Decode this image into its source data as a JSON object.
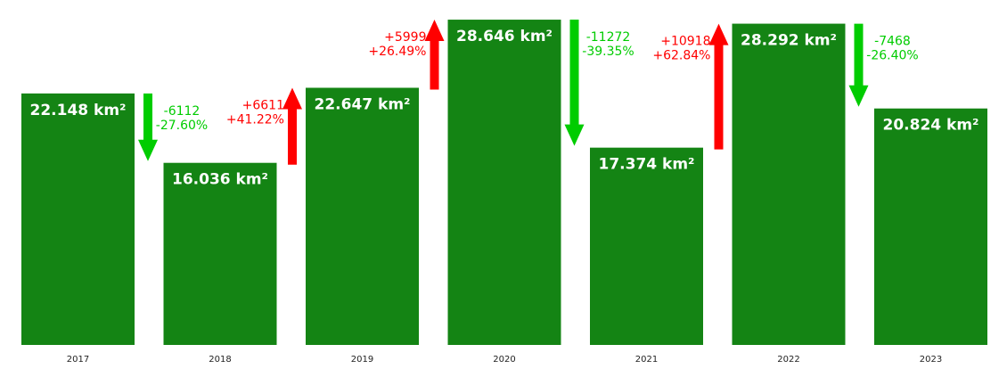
{
  "chart_data": {
    "type": "bar",
    "categories": [
      "2017",
      "2018",
      "2019",
      "2020",
      "2021",
      "2022",
      "2023"
    ],
    "values": [
      22.148,
      16.036,
      22.647,
      28.646,
      17.374,
      28.292,
      20.824
    ],
    "value_labels": [
      "22.148 km²",
      "16.036 km²",
      "22.647 km²",
      "28.646 km²",
      "17.374 km²",
      "28.292 km²",
      "20.824 km²"
    ],
    "ylim": [
      0,
      29.2
    ],
    "grid": false,
    "changes": [
      {
        "direction": "down",
        "abs": "-6112",
        "pct": "-27.60%"
      },
      {
        "direction": "up",
        "abs": "+6611",
        "pct": "+41.22%"
      },
      {
        "direction": "up",
        "abs": "+5999",
        "pct": "+26.49%"
      },
      {
        "direction": "down",
        "abs": "-11272",
        "pct": "-39.35%"
      },
      {
        "direction": "up",
        "abs": "+10918",
        "pct": "+62.84%"
      },
      {
        "direction": "down",
        "abs": "-7468",
        "pct": "-26.40%"
      }
    ],
    "colors": {
      "bar": "#148414",
      "up": "#ff0000",
      "down": "#00cc00",
      "bar_text": "#ffffff"
    }
  }
}
